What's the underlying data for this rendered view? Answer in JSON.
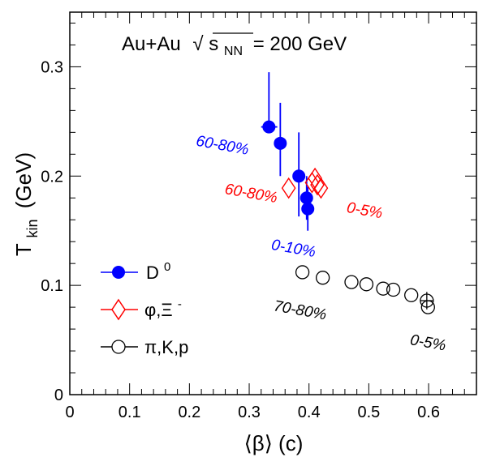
{
  "chart_data": {
    "type": "scatter",
    "title_parts": {
      "prefix": "Au+Au",
      "sqrt_symbol": "√",
      "s": "s",
      "sub": "NN",
      "suffix": "= 200 GeV"
    },
    "xlabel": "⟨β⟩ (c)",
    "ylabel_main": "T",
    "ylabel_sub": "kin",
    "ylabel_unit": "(GeV)",
    "xlim": [
      0,
      0.68
    ],
    "ylim": [
      0,
      0.35
    ],
    "x_ticks": [
      0,
      0.1,
      0.2,
      0.3,
      0.4,
      0.5,
      0.6
    ],
    "x_tick_labels": [
      "0",
      "0.1",
      "0.2",
      "0.3",
      "0.4",
      "0.5",
      "0.6"
    ],
    "y_ticks": [
      0,
      0.1,
      0.2,
      0.3
    ],
    "y_tick_labels": [
      "0",
      "0.1",
      "0.2",
      "0.3"
    ],
    "colors": {
      "d0": "#0000ff",
      "phi_xi": "#ff0000",
      "pikp": "#000000"
    },
    "series": [
      {
        "name": "D",
        "name_sup": "0",
        "marker": "filled-circle",
        "color": "#0000ff",
        "points": [
          {
            "x": 0.333,
            "y": 0.245,
            "yerr_low": 0.245,
            "yerr_high": 0.295,
            "xerr_low": 0.32,
            "xerr_high": 0.347
          },
          {
            "x": 0.352,
            "y": 0.23,
            "yerr_low": 0.2,
            "yerr_high": 0.267,
            "xerr_low": 0.352,
            "xerr_high": 0.352
          },
          {
            "x": 0.383,
            "y": 0.2,
            "yerr_low": 0.163,
            "yerr_high": 0.24,
            "xerr_low": 0.383,
            "xerr_high": 0.383
          },
          {
            "x": 0.396,
            "y": 0.18,
            "yerr_low": 0.16,
            "yerr_high": 0.2,
            "xerr_low": 0.396,
            "xerr_high": 0.396
          },
          {
            "x": 0.398,
            "y": 0.17,
            "yerr_low": 0.15,
            "yerr_high": 0.19,
            "xerr_low": 0.398,
            "xerr_high": 0.398
          }
        ]
      },
      {
        "name": "φ,Ξ",
        "name_sup": "-",
        "marker": "open-diamond",
        "color": "#ff0000",
        "points": [
          {
            "x": 0.366,
            "y": 0.189
          },
          {
            "x": 0.405,
            "y": 0.194
          },
          {
            "x": 0.41,
            "y": 0.198
          },
          {
            "x": 0.414,
            "y": 0.192
          },
          {
            "x": 0.42,
            "y": 0.189
          }
        ]
      },
      {
        "name": "π,K,p",
        "name_sup": "",
        "marker": "open-circle",
        "color": "#000000",
        "points": [
          {
            "x": 0.389,
            "y": 0.112
          },
          {
            "x": 0.423,
            "y": 0.107
          },
          {
            "x": 0.471,
            "y": 0.103
          },
          {
            "x": 0.496,
            "y": 0.101
          },
          {
            "x": 0.524,
            "y": 0.097
          },
          {
            "x": 0.541,
            "y": 0.096
          },
          {
            "x": 0.571,
            "y": 0.091
          },
          {
            "x": 0.597,
            "y": 0.086
          },
          {
            "x": 0.599,
            "y": 0.08
          }
        ]
      }
    ],
    "annotations": [
      {
        "text": "60-80%",
        "x": 0.21,
        "y": 0.228,
        "color": "#0000ff",
        "rotate": 10
      },
      {
        "text": "60-80%",
        "x": 0.258,
        "y": 0.184,
        "color": "#ff0000",
        "rotate": 10
      },
      {
        "text": "0-5%",
        "x": 0.462,
        "y": 0.167,
        "color": "#ff0000",
        "rotate": 10
      },
      {
        "text": "0-10%",
        "x": 0.336,
        "y": 0.133,
        "color": "#0000ff",
        "rotate": 10
      },
      {
        "text": "70-80%",
        "x": 0.34,
        "y": 0.077,
        "color": "#000000",
        "rotate": 10
      },
      {
        "text": "0-5%",
        "x": 0.568,
        "y": 0.046,
        "color": "#000000",
        "rotate": 10
      }
    ]
  }
}
